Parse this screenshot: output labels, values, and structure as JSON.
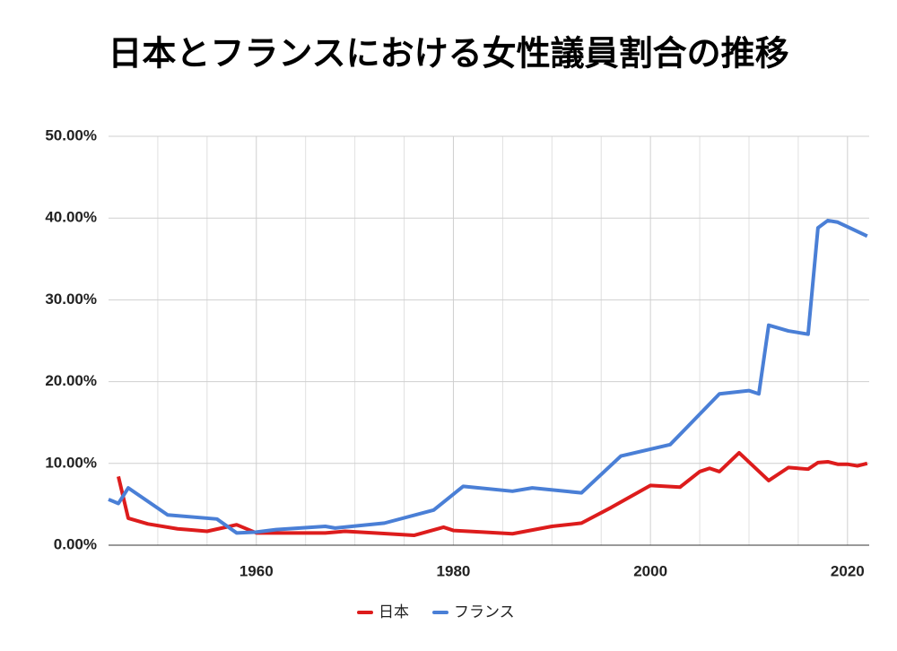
{
  "chart_data": {
    "type": "line",
    "title": "日本とフランスにおける女性議員割合の推移",
    "xlim": [
      1945,
      2022.2
    ],
    "xticks": [
      1960,
      1980,
      2000,
      2020
    ],
    "x_minor_ticks": [
      1950,
      1955,
      1965,
      1970,
      1975,
      1985,
      1990,
      1995,
      2005,
      2010,
      2015
    ],
    "ylim": [
      0,
      50
    ],
    "yticks": [
      {
        "value": 0,
        "label": "0.00%"
      },
      {
        "value": 10,
        "label": "10.00%"
      },
      {
        "value": 20,
        "label": "20.00%"
      },
      {
        "value": 30,
        "label": "30.00%"
      },
      {
        "value": 40,
        "label": "40.00%"
      },
      {
        "value": 50,
        "label": "50.00%"
      }
    ],
    "grid": true,
    "series": [
      {
        "name": "日本",
        "color": "#dd1c1c",
        "x": [
          1946,
          1947,
          1949,
          1952,
          1953,
          1955,
          1958,
          1960,
          1963,
          1967,
          1969,
          1972,
          1976,
          1979,
          1980,
          1983,
          1986,
          1990,
          1993,
          1996,
          2000,
          2003,
          2005,
          2006,
          2007,
          2009,
          2012,
          2014,
          2016,
          2017,
          2018,
          2019,
          2020,
          2021,
          2022
        ],
        "values": [
          8.4,
          3.3,
          2.6,
          2.0,
          1.9,
          1.7,
          2.5,
          1.5,
          1.5,
          1.5,
          1.7,
          1.5,
          1.2,
          2.2,
          1.8,
          1.6,
          1.4,
          2.3,
          2.7,
          4.6,
          7.3,
          7.1,
          9.0,
          9.4,
          9.0,
          11.3,
          7.9,
          9.5,
          9.3,
          10.1,
          10.2,
          9.9,
          9.9,
          9.7,
          10.0
        ]
      },
      {
        "name": "フランス",
        "color": "#4a7fd6",
        "x": [
          1945,
          1946,
          1947,
          1951,
          1956,
          1958,
          1960,
          1962,
          1967,
          1968,
          1973,
          1978,
          1981,
          1986,
          1988,
          1993,
          1997,
          2002,
          2007,
          2010,
          2011,
          2012,
          2014,
          2016,
          2017,
          2018,
          2019,
          2022
        ],
        "values": [
          5.6,
          5.1,
          7.0,
          3.7,
          3.2,
          1.5,
          1.6,
          1.9,
          2.3,
          2.1,
          2.7,
          4.3,
          7.2,
          6.6,
          7.0,
          6.4,
          10.9,
          12.3,
          18.5,
          18.9,
          18.5,
          26.9,
          26.2,
          25.8,
          38.8,
          39.7,
          39.5,
          37.8
        ]
      }
    ]
  }
}
